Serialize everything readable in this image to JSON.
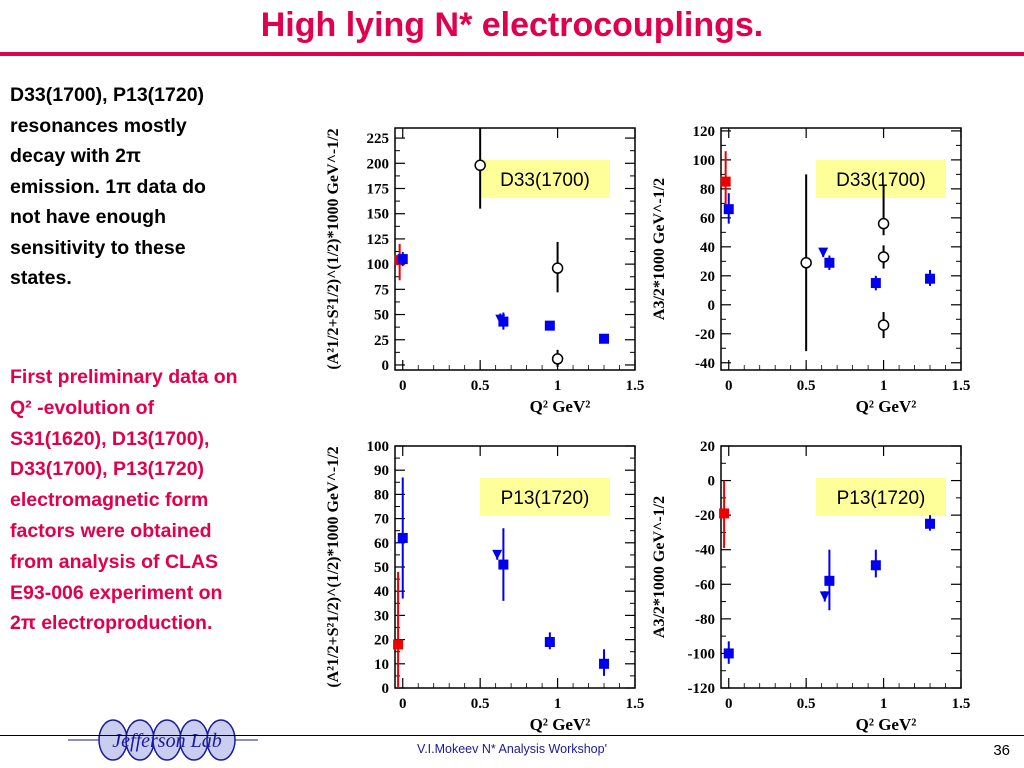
{
  "slide": {
    "title": "High lying N* electrocouplings.",
    "left_text_lines": [
      "D33(1700), P13(1720)",
      "resonances mostly",
      "decay with 2π",
      "emission. 1π data do",
      "not have enough",
      "sensitivity to these",
      "states."
    ],
    "red_text_lines": [
      "First preliminary data on",
      "Q² -evolution of",
      "S31(1620), D13(1700),",
      "D33(1700), P13(1720)",
      "electromagnetic form",
      "factors  were obtained",
      "from analysis  of CLAS",
      "E93-006 experiment on",
      "2π electroproduction."
    ],
    "footer": "V.I.Mokeev  N* Analysis Workshop'",
    "page_number": "36",
    "logo_text": "Jefferson Lab",
    "colors": {
      "title": "#e0004d",
      "label_box": "#ffff99",
      "blue": "#0000ee",
      "red": "#ee0000"
    }
  },
  "chart_data": [
    {
      "id": "d33-s",
      "type": "scatter",
      "label": "D33(1700)",
      "xlabel": "Q² GeV²",
      "ylabel": "(A²1/2+S²1/2)^(1/2)*1000 GeV^-1/2",
      "xlim": [
        -0.05,
        1.5
      ],
      "ylim": [
        -5,
        235
      ],
      "xticks": [
        {
          "v": 0,
          "t": "0"
        },
        {
          "v": 0.5,
          "t": "0.5"
        },
        {
          "v": 1,
          "t": "1"
        },
        {
          "v": 1.5,
          "t": "1.5"
        }
      ],
      "yticks": [
        {
          "v": 0,
          "t": "0"
        },
        {
          "v": 25,
          "t": "25"
        },
        {
          "v": 50,
          "t": "50"
        },
        {
          "v": 75,
          "t": "75"
        },
        {
          "v": 100,
          "t": "100"
        },
        {
          "v": 125,
          "t": "125"
        },
        {
          "v": 150,
          "t": "150"
        },
        {
          "v": 175,
          "t": "175"
        },
        {
          "v": 200,
          "t": "200"
        },
        {
          "v": 225,
          "t": "225"
        }
      ],
      "points": [
        {
          "x": -0.02,
          "y": 104,
          "lo": 84,
          "hi": 120,
          "style": "red-square"
        },
        {
          "x": 0.0,
          "y": 105,
          "lo": 98,
          "hi": 112,
          "style": "blue-square"
        },
        {
          "x": 0.5,
          "y": 198,
          "lo": 155,
          "hi": 240,
          "style": "open-circle"
        },
        {
          "x": 0.63,
          "y": 45,
          "lo": 39,
          "hi": 51,
          "style": "blue-triangle"
        },
        {
          "x": 0.65,
          "y": 43,
          "lo": 35,
          "hi": 52,
          "style": "blue-square"
        },
        {
          "x": 0.95,
          "y": 39,
          "lo": 35,
          "hi": 43,
          "style": "blue-square"
        },
        {
          "x": 1.0,
          "y": 96,
          "lo": 72,
          "hi": 122,
          "style": "open-circle"
        },
        {
          "x": 1.0,
          "y": 6,
          "lo": -2,
          "hi": 15,
          "style": "open-circle"
        },
        {
          "x": 1.3,
          "y": 26,
          "lo": 23,
          "hi": 29,
          "style": "blue-square"
        }
      ]
    },
    {
      "id": "d33-a",
      "type": "scatter",
      "label": "D33(1700)",
      "xlabel": "Q² GeV²",
      "ylabel": "A3/2*1000 GeV^-1/2",
      "xlim": [
        -0.05,
        1.5
      ],
      "ylim": [
        -45,
        122
      ],
      "xticks": [
        {
          "v": 0,
          "t": "0"
        },
        {
          "v": 0.5,
          "t": "0.5"
        },
        {
          "v": 1,
          "t": "1"
        },
        {
          "v": 1.5,
          "t": "1.5"
        }
      ],
      "yticks": [
        {
          "v": -40,
          "t": "-40"
        },
        {
          "v": -20,
          "t": "-20"
        },
        {
          "v": 0,
          "t": "0"
        },
        {
          "v": 20,
          "t": "20"
        },
        {
          "v": 40,
          "t": "40"
        },
        {
          "v": 60,
          "t": "60"
        },
        {
          "v": 80,
          "t": "80"
        },
        {
          "v": 100,
          "t": "100"
        },
        {
          "v": 120,
          "t": "120"
        }
      ],
      "points": [
        {
          "x": -0.02,
          "y": 85,
          "lo": 63,
          "hi": 106,
          "style": "red-square"
        },
        {
          "x": 0.0,
          "y": 66,
          "lo": 56,
          "hi": 77,
          "style": "blue-square"
        },
        {
          "x": 0.5,
          "y": 29,
          "lo": -32,
          "hi": 90,
          "style": "open-circle"
        },
        {
          "x": 0.61,
          "y": 36,
          "lo": 33,
          "hi": 39,
          "style": "blue-triangle"
        },
        {
          "x": 0.65,
          "y": 29,
          "lo": 24,
          "hi": 34,
          "style": "blue-square"
        },
        {
          "x": 0.95,
          "y": 15,
          "lo": 10,
          "hi": 20,
          "style": "blue-square"
        },
        {
          "x": 1.0,
          "y": 56,
          "lo": 48,
          "hi": 82,
          "style": "open-circle"
        },
        {
          "x": 1.0,
          "y": 33,
          "lo": 25,
          "hi": 41,
          "style": "open-circle"
        },
        {
          "x": 1.0,
          "y": -14,
          "lo": -23,
          "hi": -5,
          "style": "open-circle"
        },
        {
          "x": 1.3,
          "y": 18,
          "lo": 13,
          "hi": 24,
          "style": "blue-square"
        }
      ]
    },
    {
      "id": "p13-s",
      "type": "scatter",
      "label": "P13(1720)",
      "xlabel": "Q² GeV²",
      "ylabel": "(A²1/2+S²1/2)^(1/2)*1000 GeV^-1/2",
      "xlim": [
        -0.05,
        1.5
      ],
      "ylim": [
        0,
        100
      ],
      "xticks": [
        {
          "v": 0,
          "t": "0"
        },
        {
          "v": 0.5,
          "t": "0.5"
        },
        {
          "v": 1,
          "t": "1"
        },
        {
          "v": 1.5,
          "t": "1.5"
        }
      ],
      "yticks": [
        {
          "v": 0,
          "t": "0"
        },
        {
          "v": 10,
          "t": "10"
        },
        {
          "v": 20,
          "t": "20"
        },
        {
          "v": 30,
          "t": "30"
        },
        {
          "v": 40,
          "t": "40"
        },
        {
          "v": 50,
          "t": "50"
        },
        {
          "v": 60,
          "t": "60"
        },
        {
          "v": 70,
          "t": "70"
        },
        {
          "v": 80,
          "t": "80"
        },
        {
          "v": 90,
          "t": "90"
        },
        {
          "v": 100,
          "t": "100"
        }
      ],
      "points": [
        {
          "x": -0.03,
          "y": 18,
          "lo": 0,
          "hi": 48,
          "style": "red-square"
        },
        {
          "x": 0.0,
          "y": 62,
          "lo": 37,
          "hi": 87,
          "style": "blue-square"
        },
        {
          "x": 0.61,
          "y": 55,
          "lo": 53,
          "hi": 57,
          "style": "blue-triangle"
        },
        {
          "x": 0.65,
          "y": 51,
          "lo": 36,
          "hi": 66,
          "style": "blue-square"
        },
        {
          "x": 0.95,
          "y": 19,
          "lo": 16,
          "hi": 23,
          "style": "blue-square"
        },
        {
          "x": 1.3,
          "y": 10,
          "lo": 5,
          "hi": 16,
          "style": "blue-square"
        }
      ]
    },
    {
      "id": "p13-a",
      "type": "scatter",
      "label": "P13(1720)",
      "xlabel": "Q² GeV²",
      "ylabel": "A3/2*1000 GeV^-1/2",
      "xlim": [
        -0.05,
        1.5
      ],
      "ylim": [
        -120,
        20
      ],
      "xticks": [
        {
          "v": 0,
          "t": "0"
        },
        {
          "v": 0.5,
          "t": "0.5"
        },
        {
          "v": 1,
          "t": "1"
        },
        {
          "v": 1.5,
          "t": "1.5"
        }
      ],
      "yticks": [
        {
          "v": -120,
          "t": "-120"
        },
        {
          "v": -100,
          "t": "-100"
        },
        {
          "v": -80,
          "t": "-80"
        },
        {
          "v": -60,
          "t": "-60"
        },
        {
          "v": -40,
          "t": "-40"
        },
        {
          "v": -20,
          "t": "-20"
        },
        {
          "v": 0,
          "t": "0"
        },
        {
          "v": 20,
          "t": "20"
        }
      ],
      "points": [
        {
          "x": -0.03,
          "y": -19,
          "lo": -39,
          "hi": 0,
          "style": "red-square"
        },
        {
          "x": 0.0,
          "y": -100,
          "lo": -106,
          "hi": -93,
          "style": "blue-square"
        },
        {
          "x": 0.62,
          "y": -67,
          "lo": -70,
          "hi": -64,
          "style": "blue-triangle"
        },
        {
          "x": 0.65,
          "y": -58,
          "lo": -75,
          "hi": -40,
          "style": "blue-square"
        },
        {
          "x": 0.95,
          "y": -49,
          "lo": -56,
          "hi": -40,
          "style": "blue-square"
        },
        {
          "x": 1.3,
          "y": -25,
          "lo": -29,
          "hi": -20,
          "style": "blue-square"
        }
      ]
    }
  ]
}
